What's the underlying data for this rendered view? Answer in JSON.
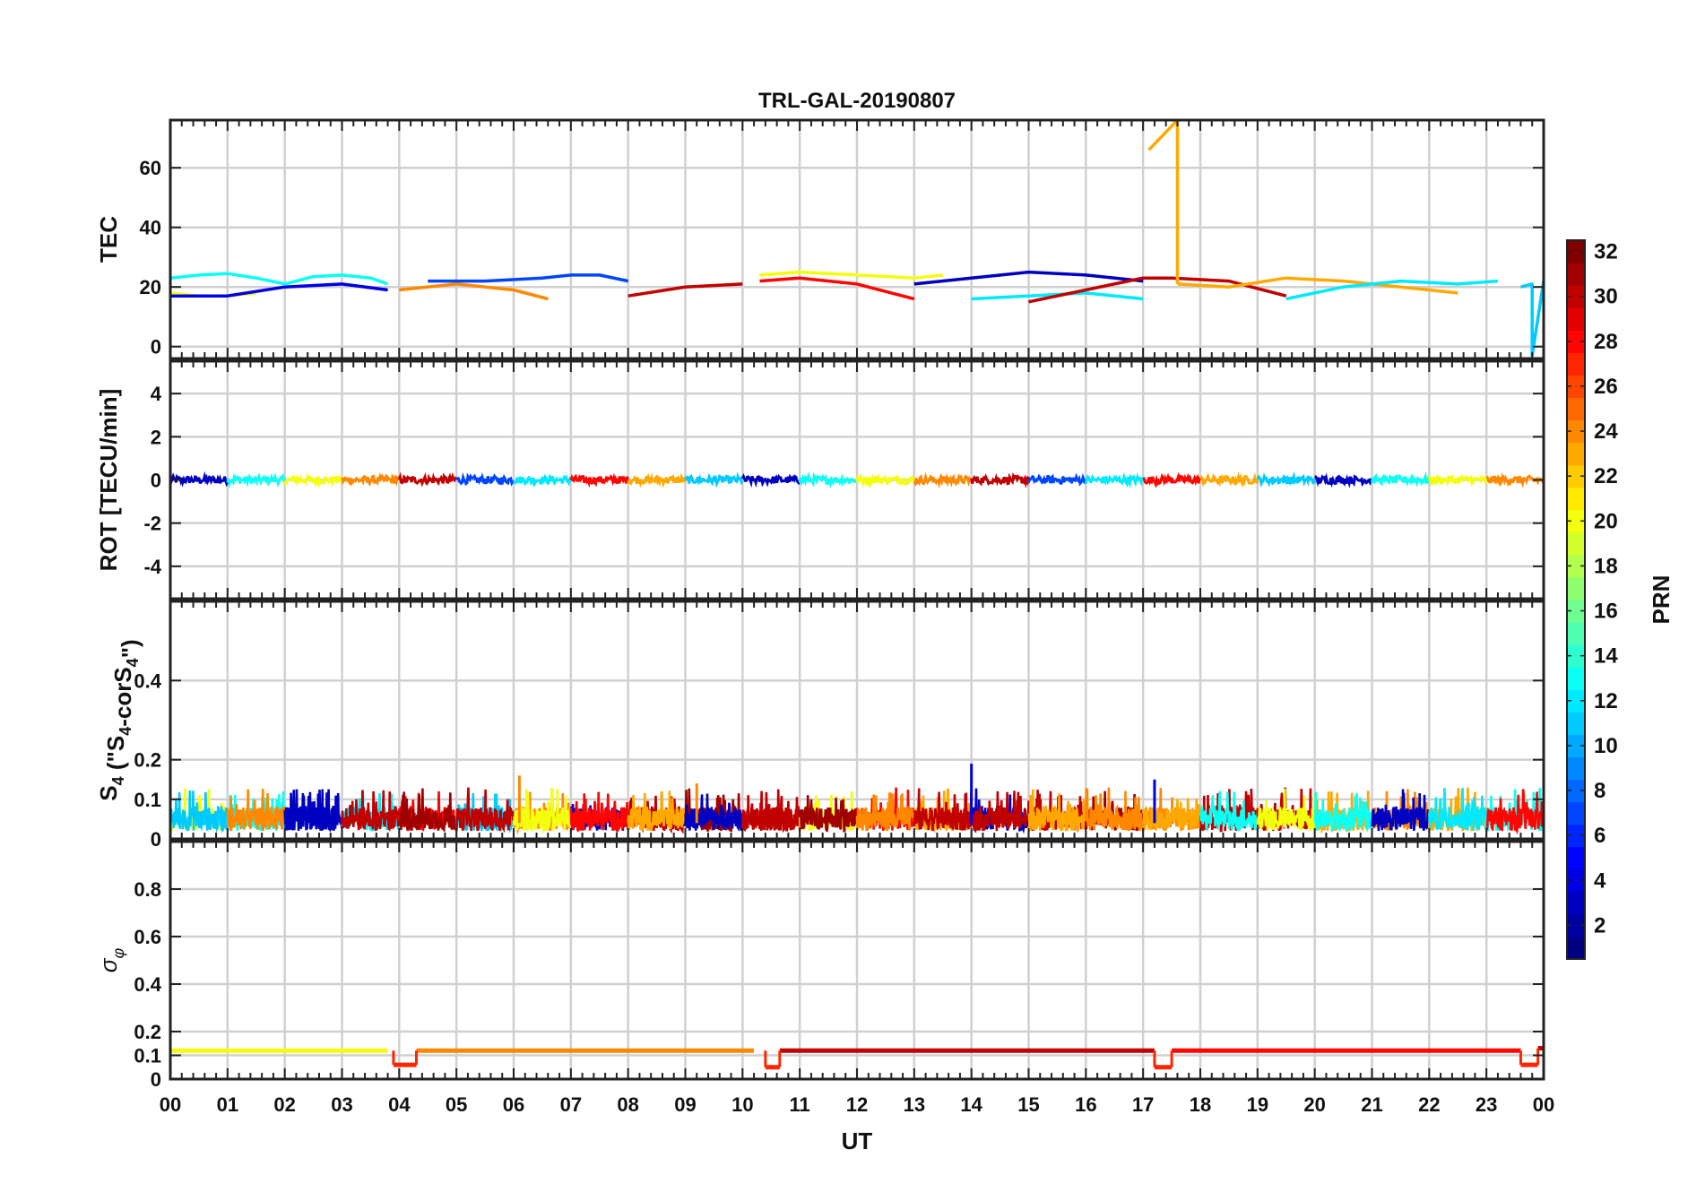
{
  "title": "TRL-GAL-20190807",
  "xlabel": "UT",
  "x_ticks": [
    "00",
    "01",
    "02",
    "03",
    "04",
    "05",
    "06",
    "07",
    "08",
    "09",
    "10",
    "11",
    "12",
    "13",
    "14",
    "15",
    "16",
    "17",
    "18",
    "19",
    "20",
    "21",
    "22",
    "23",
    "00"
  ],
  "chart_data": [
    {
      "type": "line",
      "panel": "tec",
      "ylabel": "TEC",
      "ylim": [
        -4,
        76
      ],
      "y_ticks": [
        0,
        20,
        40,
        60
      ],
      "y_tick_labels": [
        "0",
        "20",
        "40",
        "60"
      ],
      "xlim": [
        0,
        24
      ],
      "series_note": "per-satellite arcs coloured by PRN",
      "series": [
        {
          "prn": 13,
          "name": "PRN 13",
          "x": [
            0.0,
            0.5,
            1.0,
            1.5,
            2.0,
            2.5,
            3.0,
            3.5,
            3.8
          ],
          "y": [
            23,
            24,
            24.5,
            23,
            21,
            23.5,
            24,
            23,
            21
          ]
        },
        {
          "prn": 20,
          "name": "PRN 20",
          "x": [
            0.0,
            0.5,
            1.0,
            1.5
          ],
          "y": [
            18,
            17,
            17,
            18
          ]
        },
        {
          "prn": 4,
          "name": "PRN 4",
          "x": [
            0.0,
            1.0,
            2.0,
            3.0,
            3.8
          ],
          "y": [
            17,
            17,
            20,
            21,
            19
          ]
        },
        {
          "prn": 24,
          "name": "PRN 24",
          "x": [
            4.0,
            5.0,
            6.0,
            6.6
          ],
          "y": [
            19,
            21,
            19,
            16
          ]
        },
        {
          "prn": 7,
          "name": "PRN 7",
          "x": [
            4.5,
            5.5,
            6.5,
            7.0,
            7.5,
            8.0
          ],
          "y": [
            22,
            22,
            23,
            24,
            24,
            22
          ]
        },
        {
          "prn": 30,
          "name": "PRN 30",
          "x": [
            8.0,
            9.0,
            10.0
          ],
          "y": [
            17,
            20,
            21
          ]
        },
        {
          "prn": 20,
          "name": "PRN 20",
          "x": [
            10.3,
            11.0,
            12.0,
            13.0,
            13.5
          ],
          "y": [
            24,
            25,
            24,
            23,
            24
          ]
        },
        {
          "prn": 28,
          "name": "PRN 28",
          "x": [
            10.3,
            11.0,
            12.0,
            13.0
          ],
          "y": [
            22,
            23,
            21,
            16
          ]
        },
        {
          "prn": 3,
          "name": "PRN 3",
          "x": [
            13.0,
            14.0,
            15.0,
            16.0,
            17.0
          ],
          "y": [
            21,
            23,
            25,
            24,
            22
          ]
        },
        {
          "prn": 12,
          "name": "PRN 12",
          "x": [
            14.0,
            15.0,
            16.0,
            17.0
          ],
          "y": [
            16,
            17,
            18,
            16
          ]
        },
        {
          "prn": 30,
          "name": "PRN 30",
          "x": [
            15.0,
            16.0,
            17.0,
            17.5,
            18.5,
            19.5
          ],
          "y": [
            15,
            19,
            23,
            23,
            22,
            17
          ]
        },
        {
          "prn": 23,
          "name": "PRN 23",
          "x": [
            17.1,
            17.6,
            17.6
          ],
          "y": [
            66,
            76,
            21
          ]
        },
        {
          "prn": 23,
          "name": "PRN 23",
          "x": [
            17.6,
            18.5,
            19.5,
            20.5,
            21.5,
            22.5
          ],
          "y": [
            21,
            20,
            23,
            22,
            20,
            18
          ]
        },
        {
          "prn": 12,
          "name": "PRN 12",
          "x": [
            19.5,
            20.5,
            21.5,
            22.5,
            23.2
          ],
          "y": [
            16,
            20,
            22,
            21,
            22
          ]
        },
        {
          "prn": 11,
          "name": "PRN 11",
          "x": [
            23.6,
            23.8,
            23.8,
            24.0
          ],
          "y": [
            20,
            21,
            -3,
            22
          ]
        }
      ]
    },
    {
      "type": "line",
      "panel": "rot",
      "ylabel": "ROT [TECU/min]",
      "ylim": [
        -5.5,
        5.5
      ],
      "y_ticks": [
        -4,
        -2,
        0,
        2,
        4
      ],
      "y_tick_labels": [
        "-4",
        "-2",
        "0",
        "2",
        "4"
      ],
      "xlim": [
        0,
        24
      ],
      "level": 0,
      "note": "all PRN traces near 0 TECU/min"
    },
    {
      "type": "line",
      "panel": "s4",
      "ylabel": "S4 (\"S4-corS4\")",
      "ylim": [
        0,
        0.6
      ],
      "y_ticks": [
        0,
        0.1,
        0.2,
        0.4
      ],
      "y_tick_labels": [
        "0",
        "0.1",
        "0.2",
        "0.4"
      ],
      "xlim": [
        0,
        24
      ],
      "typical_range": [
        0.02,
        0.12
      ],
      "peaks": [
        {
          "x": 6.1,
          "y": 0.16
        },
        {
          "x": 9.2,
          "y": 0.14
        },
        {
          "x": 14.0,
          "y": 0.19
        },
        {
          "x": 17.2,
          "y": 0.15
        }
      ]
    },
    {
      "type": "line",
      "panel": "sigma_phi",
      "ylabel": "σφ",
      "ylim": [
        0,
        1
      ],
      "y_ticks": [
        0,
        0.1,
        0.2,
        0.4,
        0.6,
        0.8
      ],
      "y_tick_labels": [
        "0",
        "0.1",
        "0.2",
        "0.4",
        "0.6",
        "0.8"
      ],
      "xlim": [
        0,
        24
      ],
      "segments": [
        {
          "x": [
            0.0,
            3.8
          ],
          "y": 0.12
        },
        {
          "x": [
            3.9,
            4.3
          ],
          "y": 0.06
        },
        {
          "x": [
            4.3,
            10.2
          ],
          "y": 0.12
        },
        {
          "x": [
            10.4,
            10.65
          ],
          "y": 0.05
        },
        {
          "x": [
            10.65,
            17.2
          ],
          "y": 0.12
        },
        {
          "x": [
            17.2,
            17.5
          ],
          "y": 0.05
        },
        {
          "x": [
            17.5,
            23.6
          ],
          "y": 0.12
        },
        {
          "x": [
            23.6,
            23.9
          ],
          "y": 0.06
        },
        {
          "x": [
            23.9,
            24.0
          ],
          "y": 0.13
        }
      ]
    }
  ],
  "colorbar": {
    "label": "PRN",
    "min": 1,
    "max": 32,
    "ticks": [
      "2",
      "4",
      "6",
      "8",
      "10",
      "12",
      "14",
      "16",
      "18",
      "20",
      "22",
      "24",
      "26",
      "28",
      "30",
      "32"
    ]
  }
}
